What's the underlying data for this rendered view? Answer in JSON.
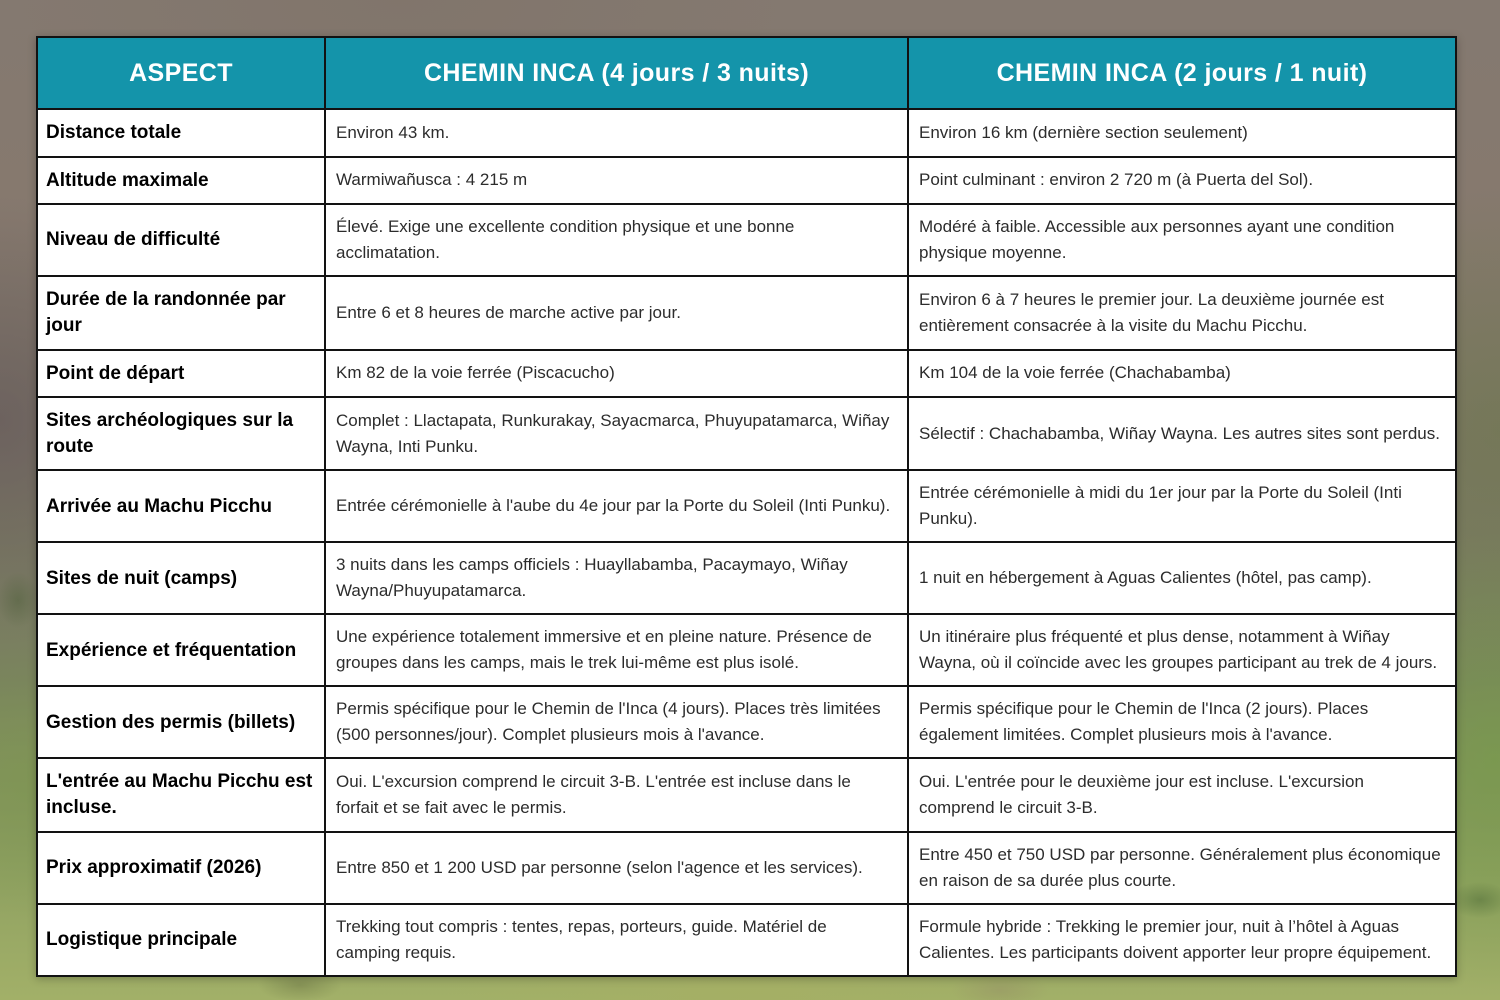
{
  "colors": {
    "header_bg": "#1494aa",
    "header_text": "#ffffff",
    "cell_bg": "#ffffff",
    "border": "#121212"
  },
  "background": {
    "description": "photo of Andean mountainside with rocky slopes and green terraced valley"
  },
  "table": {
    "columns": [
      "ASPECT",
      "CHEMIN INCA (4 jours / 3 nuits)",
      "CHEMIN INCA (2 jours / 1 nuit)"
    ],
    "rows": [
      {
        "aspect": "Distance totale",
        "inca4": "Environ 43 km.",
        "inca2": "Environ 16 km (dernière section seulement)"
      },
      {
        "aspect": "Altitude maximale",
        "inca4": "Warmiwañusca : 4 215 m",
        "inca2": "Point culminant : environ 2 720 m (à Puerta del Sol)."
      },
      {
        "aspect": "Niveau de difficulté",
        "inca4": "Élevé. Exige une excellente condition physique et une bonne acclimatation.",
        "inca2": "Modéré à faible. Accessible aux personnes ayant une condition physique moyenne."
      },
      {
        "aspect": "Durée de la randonnée par jour",
        "inca4": "Entre 6 et 8 heures de marche active par jour.",
        "inca2": "Environ 6 à 7 heures le premier jour. La deuxième journée est entièrement consacrée à la visite du Machu Picchu."
      },
      {
        "aspect": "Point de départ",
        "inca4": "Km 82 de la voie ferrée (Piscacucho)",
        "inca2": "Km 104 de la voie ferrée (Chachabamba)"
      },
      {
        "aspect": "Sites archéologiques sur la route",
        "inca4": "Complet : Llactapata, Runkurakay, Sayacmarca, Phuyupatamarca, Wiñay Wayna, Inti Punku.",
        "inca2": "Sélectif : Chachabamba, Wiñay Wayna. Les autres sites sont perdus."
      },
      {
        "aspect": "Arrivée au Machu Picchu",
        "inca4": "Entrée cérémonielle à l'aube du 4e jour par la Porte du Soleil (Inti Punku).",
        "inca2": "Entrée cérémonielle à midi du 1er jour par la Porte du Soleil (Inti Punku)."
      },
      {
        "aspect": "Sites de nuit (camps)",
        "inca4": "3 nuits dans les camps officiels : Huayllabamba, Pacaymayo, Wiñay Wayna/Phuyupatamarca.",
        "inca2": "1 nuit en hébergement à Aguas Calientes (hôtel, pas camp)."
      },
      {
        "aspect": "Expérience et fréquentation",
        "inca4": "Une expérience totalement immersive et en pleine nature. Présence de groupes dans les camps, mais le trek lui-même est plus isolé.",
        "inca2": "Un itinéraire plus fréquenté et plus dense, notamment à Wiñay Wayna, où il coïncide avec les groupes participant au trek de 4 jours."
      },
      {
        "aspect": "Gestion des permis (billets)",
        "inca4": "Permis spécifique pour le Chemin de l'Inca (4 jours). Places très limitées (500 personnes/jour). Complet plusieurs mois à l'avance.",
        "inca2": "Permis spécifique pour le Chemin de l'Inca (2 jours). Places également limitées. Complet plusieurs mois à l'avance."
      },
      {
        "aspect": "L'entrée au Machu Picchu est incluse.",
        "inca4": "Oui. L'excursion comprend le circuit 3-B. L'entrée est incluse dans le forfait et se fait avec le permis.",
        "inca2": "Oui. L'entrée pour le deuxième jour est incluse. L'excursion comprend le circuit 3-B."
      },
      {
        "aspect": "Prix approximatif (2026)",
        "inca4": "Entre 850 et 1 200 USD par personne (selon l'agence et les services).",
        "inca2": "Entre 450 et 750 USD par personne. Généralement plus économique en raison de sa durée plus courte."
      },
      {
        "aspect": "Logistique principale",
        "inca4": "Trekking tout compris : tentes, repas, porteurs, guide. Matériel de camping requis.",
        "inca2": "Formule hybride : Trekking le premier jour, nuit à l’hôtel à Aguas Calientes. Les participants doivent apporter leur propre équipement."
      }
    ]
  }
}
